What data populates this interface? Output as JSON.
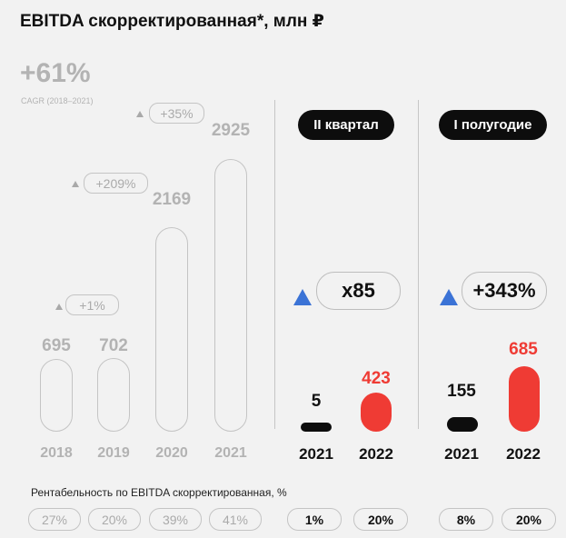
{
  "title": "EBITDA скорректированная*, млн ₽",
  "cagr": {
    "value": "+61%",
    "label": "CAGR (2018–2021)"
  },
  "colors": {
    "history": "#c4c4c4",
    "dark": "#0d0d0d",
    "red": "#ef3b34",
    "up_arrow": "#3b73d6"
  },
  "chart_data": [
    {
      "type": "bar",
      "categories": [
        "2018",
        "2019",
        "2020",
        "2021"
      ],
      "values": [
        695,
        702,
        2169,
        2925
      ],
      "value_labels": [
        "695",
        "702",
        "2169",
        "2925"
      ],
      "growth_labels": [
        "+1%",
        "+209%",
        "+35%"
      ]
    },
    {
      "type": "bar",
      "period_label": "II квартал",
      "categories": [
        "2021",
        "2022"
      ],
      "values": [
        5,
        423
      ],
      "value_labels": [
        "5",
        "423"
      ],
      "growth_label": "x85"
    },
    {
      "type": "bar",
      "period_label": "I полугодие",
      "categories": [
        "2021",
        "2022"
      ],
      "values": [
        155,
        685
      ],
      "value_labels": [
        "155",
        "685"
      ],
      "growth_label": "+343%"
    }
  ],
  "margin": {
    "title": "Рентабельность по EBITDA скорректированная, %",
    "history": [
      "27%",
      "20%",
      "39%",
      "41%"
    ],
    "quarter": [
      "1%",
      "20%"
    ],
    "half": [
      "8%",
      "20%"
    ]
  }
}
